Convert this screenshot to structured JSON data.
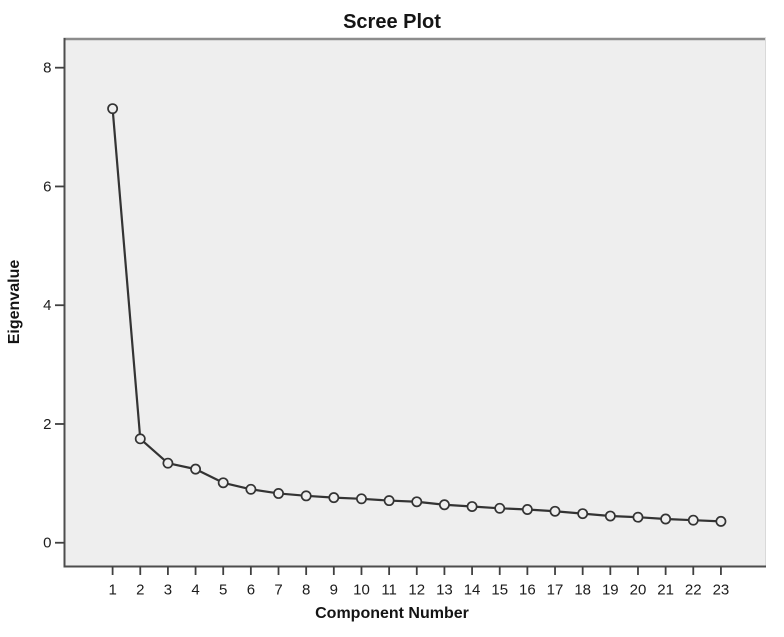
{
  "chart_data": {
    "type": "line",
    "title": "Scree Plot",
    "xlabel": "Component Number",
    "ylabel": "Eigenvalue",
    "x": [
      1,
      2,
      3,
      4,
      5,
      6,
      7,
      8,
      9,
      10,
      11,
      12,
      13,
      14,
      15,
      16,
      17,
      18,
      19,
      20,
      21,
      22,
      23
    ],
    "y": [
      7.31,
      1.75,
      1.34,
      1.24,
      1.01,
      0.9,
      0.83,
      0.79,
      0.76,
      0.74,
      0.71,
      0.69,
      0.64,
      0.61,
      0.58,
      0.56,
      0.53,
      0.49,
      0.45,
      0.43,
      0.4,
      0.38,
      0.36
    ],
    "yticks": [
      0,
      2,
      4,
      6,
      8
    ],
    "xlim": [
      -0.74,
      24.63
    ],
    "ylim": [
      -0.4,
      8.5
    ],
    "grid": false,
    "legend_position": "none",
    "marker": "open-circle",
    "line_color": "#333333",
    "marker_stroke_color": "#333333",
    "plot_bg": "#eeeeee",
    "text_color": "#141414"
  }
}
